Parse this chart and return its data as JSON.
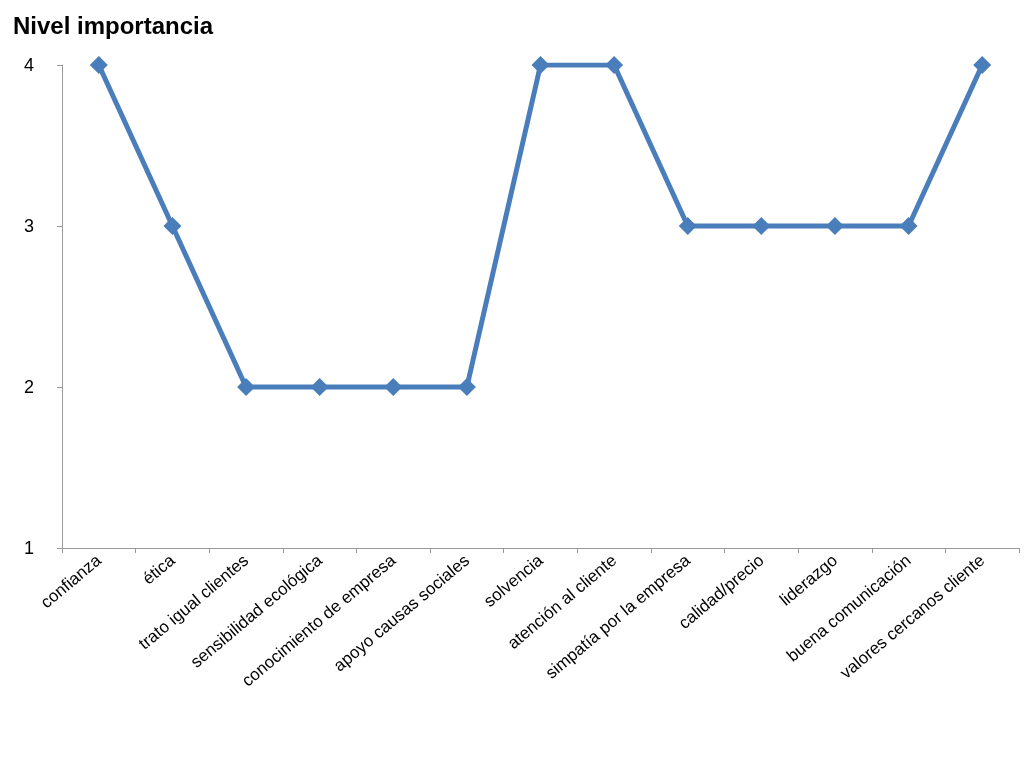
{
  "chart_data": {
    "type": "line",
    "title": "Nivel importancia",
    "categories": [
      "confianza",
      "ética",
      "trato igual clientes",
      "sensibilidad ecológica",
      "conocimiento de empresa",
      "apoyo causas sociales",
      "solvencia",
      "atención al cliente",
      "simpatía por la empresa",
      "calidad/precio",
      "liderazgo",
      "buena comunicación",
      "valores cercanos cliente"
    ],
    "series": [
      {
        "color": "#4a7ebb",
        "values": [
          4,
          3,
          2,
          2,
          2,
          2,
          4,
          4,
          3,
          3,
          3,
          3,
          4
        ]
      }
    ],
    "ylim": [
      1,
      4
    ],
    "yticks": [
      1,
      2,
      3,
      4
    ],
    "marker": "diamond",
    "line_style": "solid"
  }
}
